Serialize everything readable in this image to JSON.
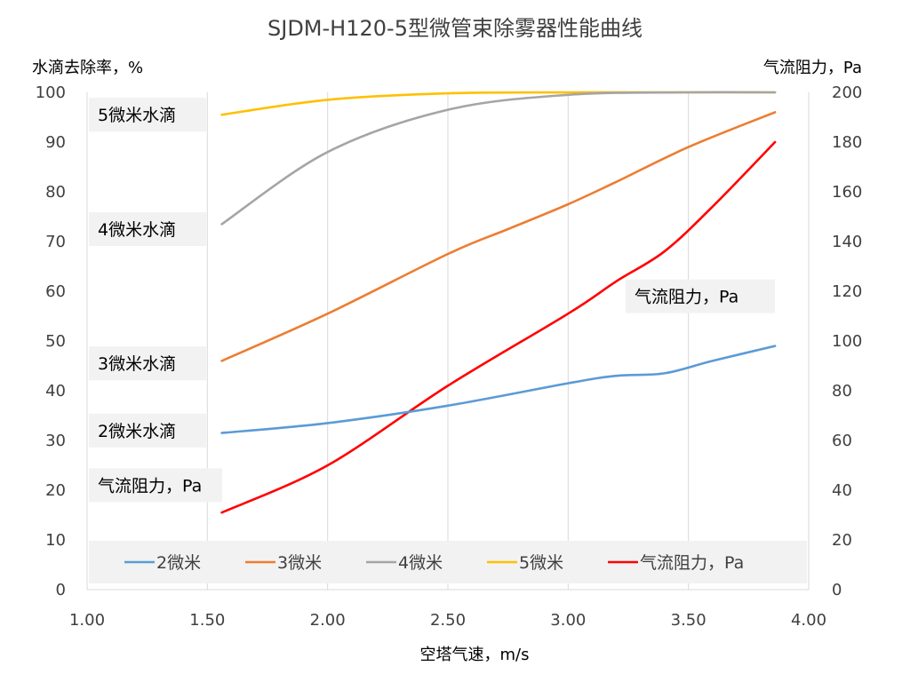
{
  "chart_data": {
    "type": "line",
    "title": "SJDM-H120-5型微管束除雾器性能曲线",
    "xlabel": "空塔气速，m/s",
    "ylabel_left": "水滴去除率，%",
    "ylabel_right": "气流阻力，Pa",
    "xlim": [
      1.0,
      4.0
    ],
    "ylim_left": [
      0,
      100
    ],
    "ylim_right": [
      0,
      200
    ],
    "x_ticks": [
      "1.00",
      "1.50",
      "2.00",
      "2.50",
      "3.00",
      "3.50",
      "4.00"
    ],
    "y_ticks_left": [
      "0",
      "10",
      "20",
      "30",
      "40",
      "50",
      "60",
      "70",
      "80",
      "90",
      "100"
    ],
    "y_ticks_right": [
      "0",
      "20",
      "40",
      "60",
      "80",
      "100",
      "120",
      "140",
      "160",
      "180",
      "200"
    ],
    "grid": "vertical",
    "legend_position": "bottom-inside",
    "series": [
      {
        "name": "2微米",
        "axis": "left",
        "color": "#5b9bd5",
        "label": "2微米水滴",
        "x": [
          1.56,
          2.0,
          2.5,
          3.0,
          3.2,
          3.4,
          3.6,
          3.86
        ],
        "y": [
          31.5,
          33.5,
          37,
          41.5,
          43,
          43.5,
          46,
          49
        ]
      },
      {
        "name": "3微米",
        "axis": "left",
        "color": "#ed7d31",
        "label": "3微米水滴",
        "x": [
          1.56,
          2.0,
          2.5,
          2.75,
          3.0,
          3.2,
          3.5,
          3.86
        ],
        "y": [
          46,
          55.5,
          67.5,
          72.5,
          77.5,
          82,
          89,
          96
        ]
      },
      {
        "name": "4微米",
        "axis": "left",
        "color": "#a5a5a5",
        "label": "4微米水滴",
        "x": [
          1.56,
          2.0,
          2.5,
          3.0,
          3.5,
          3.86
        ],
        "y": [
          73.5,
          88,
          96.5,
          99.5,
          100,
          100
        ]
      },
      {
        "name": "5微米",
        "axis": "left",
        "color": "#ffc000",
        "label": "5微米水滴",
        "x": [
          1.56,
          2.0,
          2.5,
          3.0,
          3.5,
          3.86
        ],
        "y": [
          95.5,
          98.5,
          99.8,
          100,
          100,
          100
        ]
      },
      {
        "name": "气流阻力，Pa",
        "axis": "right",
        "color": "#ff0000",
        "label": "气流阻力，Pa",
        "x": [
          1.56,
          2.0,
          2.5,
          3.0,
          3.2,
          3.4,
          3.6,
          3.86
        ],
        "y": [
          31,
          50,
          82,
          111,
          124,
          136,
          154,
          180
        ]
      }
    ]
  }
}
